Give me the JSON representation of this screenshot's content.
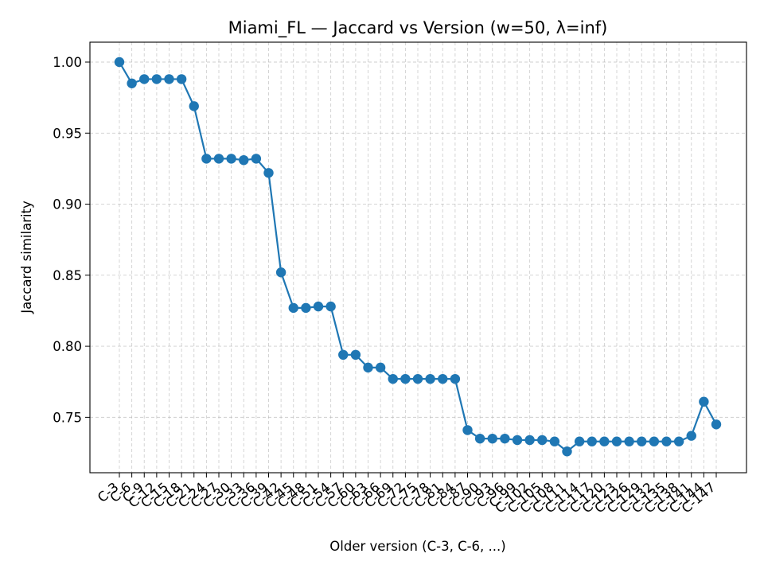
{
  "chart_data": {
    "type": "line",
    "title": "Miami_FL — Jaccard vs Version (w=50, λ=inf)",
    "xlabel": "Older version (C-3, C-6, ...)",
    "ylabel": "Jaccard similarity",
    "categories": [
      "C-3",
      "C-6",
      "C-9",
      "C-12",
      "C-15",
      "C-18",
      "C-21",
      "C-24",
      "C-27",
      "C-30",
      "C-33",
      "C-36",
      "C-39",
      "C-42",
      "C-45",
      "C-48",
      "C-51",
      "C-54",
      "C-57",
      "C-60",
      "C-63",
      "C-66",
      "C-69",
      "C-72",
      "C-75",
      "C-78",
      "C-81",
      "C-84",
      "C-87",
      "C-90",
      "C-93",
      "C-96",
      "C-99",
      "C-102",
      "C-105",
      "C-108",
      "C-111",
      "C-114",
      "C-117",
      "C-120",
      "C-123",
      "C-126",
      "C-129",
      "C-132",
      "C-135",
      "C-138",
      "C-141",
      "C-144",
      "C-147"
    ],
    "values": [
      1.0,
      0.985,
      0.988,
      0.988,
      0.988,
      0.988,
      0.969,
      0.932,
      0.932,
      0.932,
      0.931,
      0.932,
      0.922,
      0.852,
      0.827,
      0.827,
      0.828,
      0.828,
      0.794,
      0.794,
      0.785,
      0.785,
      0.777,
      0.777,
      0.777,
      0.777,
      0.777,
      0.777,
      0.741,
      0.735,
      0.735,
      0.735,
      0.734,
      0.734,
      0.734,
      0.733,
      0.726,
      0.733,
      0.733,
      0.733,
      0.733,
      0.733,
      0.733,
      0.733,
      0.733,
      0.733,
      0.737,
      0.761,
      0.745
    ],
    "yticks": [
      "1.00",
      "0.95",
      "0.90",
      "0.85",
      "0.80",
      "0.75"
    ],
    "ylim": [
      0.711,
      1.014
    ],
    "grid": true,
    "color": "#1f77b4"
  }
}
